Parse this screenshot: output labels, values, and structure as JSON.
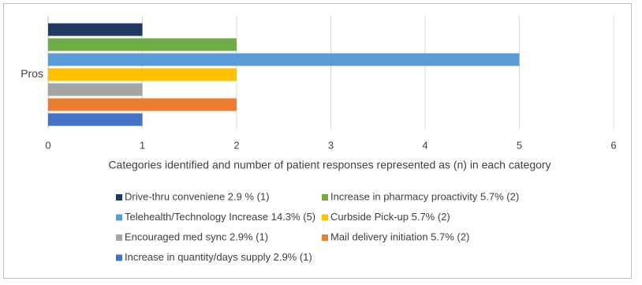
{
  "chart_data": {
    "type": "bar",
    "orientation": "horizontal",
    "x_label": "Categories identified and number of patient responses represented as (n) in each category",
    "categories": [
      "Pros"
    ],
    "series": [
      {
        "name": "Drive-thru conveniene 2.9 % (1)",
        "color": "#203864",
        "values": [
          1
        ]
      },
      {
        "name": "Increase in pharmacy proactivity 5.7% (2)",
        "color": "#70ad47",
        "values": [
          2
        ]
      },
      {
        "name": "Telehealth/Technology Increase 14.3% (5)",
        "color": "#5b9bd5",
        "values": [
          5
        ]
      },
      {
        "name": "Curbside Pick-up 5.7% (2)",
        "color": "#ffc000",
        "values": [
          2
        ]
      },
      {
        "name": "Encouraged med sync 2.9% (1)",
        "color": "#a5a5a5",
        "values": [
          1
        ]
      },
      {
        "name": "Mail delivery initiation 5.7% (2)",
        "color": "#ed7d31",
        "values": [
          2
        ]
      },
      {
        "name": "Increase in quantity/days supply 2.9% (1)",
        "color": "#4472c4",
        "values": [
          1
        ]
      }
    ],
    "xlim": [
      0,
      6
    ],
    "xticks": [
      0,
      1,
      2,
      3,
      4,
      5,
      6
    ],
    "grid": true,
    "legend": "bottom"
  }
}
